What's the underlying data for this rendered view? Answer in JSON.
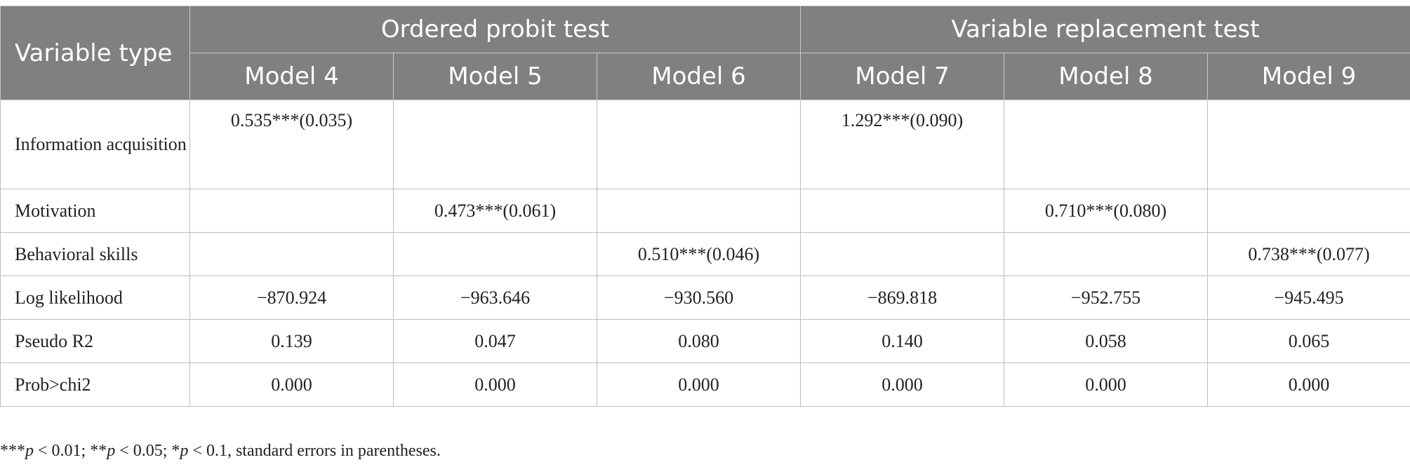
{
  "header": {
    "variable_type": "Variable type",
    "group1": "Ordered probit test",
    "group2": "Variable replacement test",
    "models": [
      "Model 4",
      "Model 5",
      "Model 6",
      "Model 7",
      "Model 8",
      "Model 9"
    ]
  },
  "rows": [
    {
      "label": "Information acquisition",
      "cells": [
        "0.535***(0.035)",
        "",
        "",
        "1.292***(0.090)",
        "",
        ""
      ]
    },
    {
      "label": "Motivation",
      "cells": [
        "",
        "0.473***(0.061)",
        "",
        "",
        "0.710***(0.080)",
        ""
      ]
    },
    {
      "label": "Behavioral skills",
      "cells": [
        "",
        "",
        "0.510***(0.046)",
        "",
        "",
        "0.738***(0.077)"
      ]
    },
    {
      "label": "Log likelihood",
      "cells": [
        "−870.924",
        "−963.646",
        "−930.560",
        "−869.818",
        "−952.755",
        "−945.495"
      ]
    },
    {
      "label": "Pseudo R2",
      "cells": [
        "0.139",
        "0.047",
        "0.080",
        "0.140",
        "0.058",
        "0.065"
      ]
    },
    {
      "label": "Prob>chi2",
      "cells": [
        "0.000",
        "0.000",
        "0.000",
        "0.000",
        "0.000",
        "0.000"
      ]
    }
  ],
  "note": {
    "p1_stars": "***",
    "p1_var": "p",
    "p1_rest": " < 0.01; ",
    "p2_stars": "**",
    "p2_var": "p",
    "p2_rest": " < 0.05; ",
    "p3_stars": "*",
    "p3_var": "p",
    "p3_rest": " < 0.1, standard errors in parentheses."
  },
  "colors": {
    "header_bg": "#808080",
    "header_text": "#ffffff",
    "grid": "#bdbdbd"
  }
}
